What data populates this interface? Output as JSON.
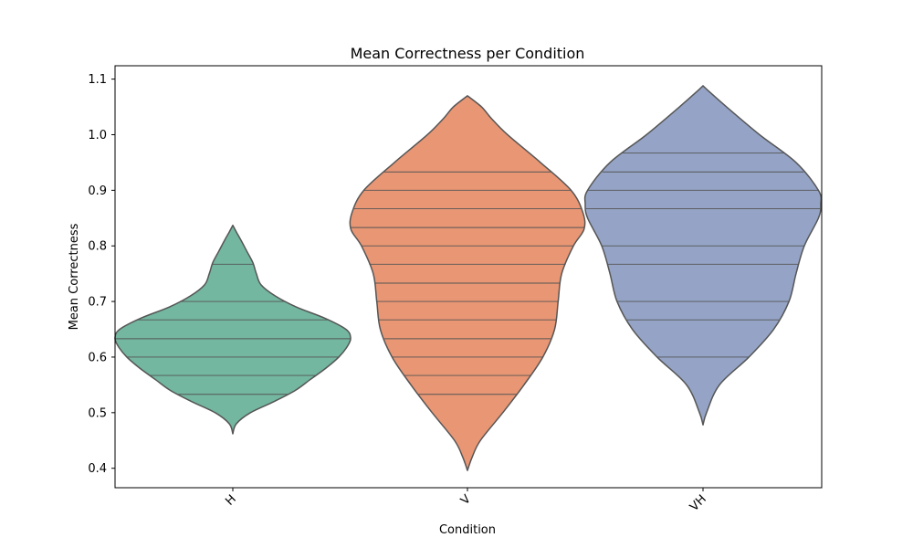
{
  "chart_data": {
    "type": "violin",
    "title": "Mean Correctness per Condition",
    "xlabel": "Condition",
    "ylabel": "Mean Correctness",
    "ylim": [
      0.365,
      1.124
    ],
    "yticks": [
      "0.4",
      "0.5",
      "0.6",
      "0.7",
      "0.8",
      "0.9",
      "1.0",
      "1.1"
    ],
    "ytick_values": [
      0.4,
      0.5,
      0.6,
      0.7,
      0.8,
      0.9,
      1.0,
      1.1
    ],
    "grid": false,
    "legend": "none",
    "series": [
      {
        "category": "H",
        "color": "#73b7a0",
        "observations": [
          0.533,
          0.567,
          0.6,
          0.633,
          0.667,
          0.7,
          0.767
        ],
        "density": [
          [
            0.462,
            0
          ],
          [
            0.48,
            0.03
          ],
          [
            0.5,
            0.15
          ],
          [
            0.52,
            0.35
          ],
          [
            0.54,
            0.53
          ],
          [
            0.56,
            0.66
          ],
          [
            0.58,
            0.79
          ],
          [
            0.6,
            0.9
          ],
          [
            0.62,
            0.975
          ],
          [
            0.635,
            1.0
          ],
          [
            0.65,
            0.96
          ],
          [
            0.67,
            0.78
          ],
          [
            0.69,
            0.54
          ],
          [
            0.71,
            0.36
          ],
          [
            0.73,
            0.24
          ],
          [
            0.75,
            0.2
          ],
          [
            0.77,
            0.17
          ],
          [
            0.79,
            0.12
          ],
          [
            0.81,
            0.07
          ],
          [
            0.825,
            0.03
          ],
          [
            0.837,
            0
          ]
        ]
      },
      {
        "category": "V",
        "color": "#e99674",
        "observations": [
          0.533,
          0.567,
          0.6,
          0.633,
          0.667,
          0.7,
          0.733,
          0.767,
          0.8,
          0.833,
          0.867,
          0.9,
          0.933
        ],
        "density": [
          [
            0.396,
            0
          ],
          [
            0.42,
            0.04
          ],
          [
            0.45,
            0.11
          ],
          [
            0.5,
            0.3
          ],
          [
            0.55,
            0.48
          ],
          [
            0.6,
            0.64
          ],
          [
            0.65,
            0.74
          ],
          [
            0.7,
            0.77
          ],
          [
            0.75,
            0.8
          ],
          [
            0.8,
            0.9
          ],
          [
            0.83,
            0.99
          ],
          [
            0.86,
            0.98
          ],
          [
            0.9,
            0.88
          ],
          [
            0.95,
            0.62
          ],
          [
            1.0,
            0.34
          ],
          [
            1.03,
            0.2
          ],
          [
            1.05,
            0.12
          ],
          [
            1.07,
            0
          ]
        ]
      },
      {
        "category": "VH",
        "color": "#95a4c6",
        "observations": [
          0.6,
          0.667,
          0.7,
          0.767,
          0.8,
          0.867,
          0.9,
          0.933,
          0.967
        ],
        "density": [
          [
            0.478,
            0
          ],
          [
            0.5,
            0.03
          ],
          [
            0.55,
            0.14
          ],
          [
            0.6,
            0.39
          ],
          [
            0.65,
            0.6
          ],
          [
            0.7,
            0.73
          ],
          [
            0.75,
            0.79
          ],
          [
            0.8,
            0.86
          ],
          [
            0.85,
            0.98
          ],
          [
            0.875,
            1.0
          ],
          [
            0.9,
            0.98
          ],
          [
            0.95,
            0.79
          ],
          [
            1.0,
            0.48
          ],
          [
            1.05,
            0.2
          ],
          [
            1.08,
            0.04
          ],
          [
            1.088,
            0
          ]
        ]
      }
    ]
  }
}
